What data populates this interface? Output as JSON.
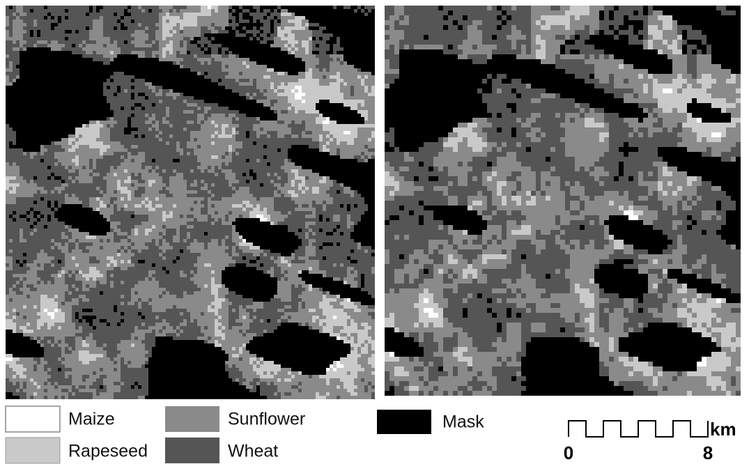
{
  "legend": {
    "items": [
      {
        "label": "Maize"
      },
      {
        "label": "Sunflower"
      },
      {
        "label": "Mask"
      },
      {
        "label": "Rapeseed"
      },
      {
        "label": "Wheat"
      }
    ]
  },
  "scale_bar": {
    "unit": "km",
    "start_label": "0",
    "end_label": "8"
  }
}
